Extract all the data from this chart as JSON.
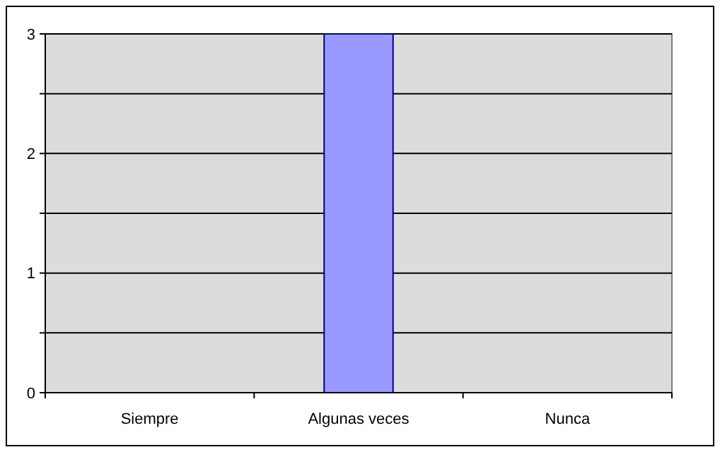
{
  "chart_data": {
    "type": "bar",
    "categories": [
      "Siempre",
      "Algunas veces",
      "Nunca"
    ],
    "values": [
      0,
      3,
      0
    ],
    "color": "#9999ff",
    "ylim": [
      0,
      3
    ],
    "yticks": [
      0,
      {
        "value": 0.5,
        "label": null
      },
      1,
      {
        "value": 1.5,
        "label": null
      },
      2,
      {
        "value": 2.5,
        "label": null
      },
      3
    ],
    "grid": "y"
  }
}
